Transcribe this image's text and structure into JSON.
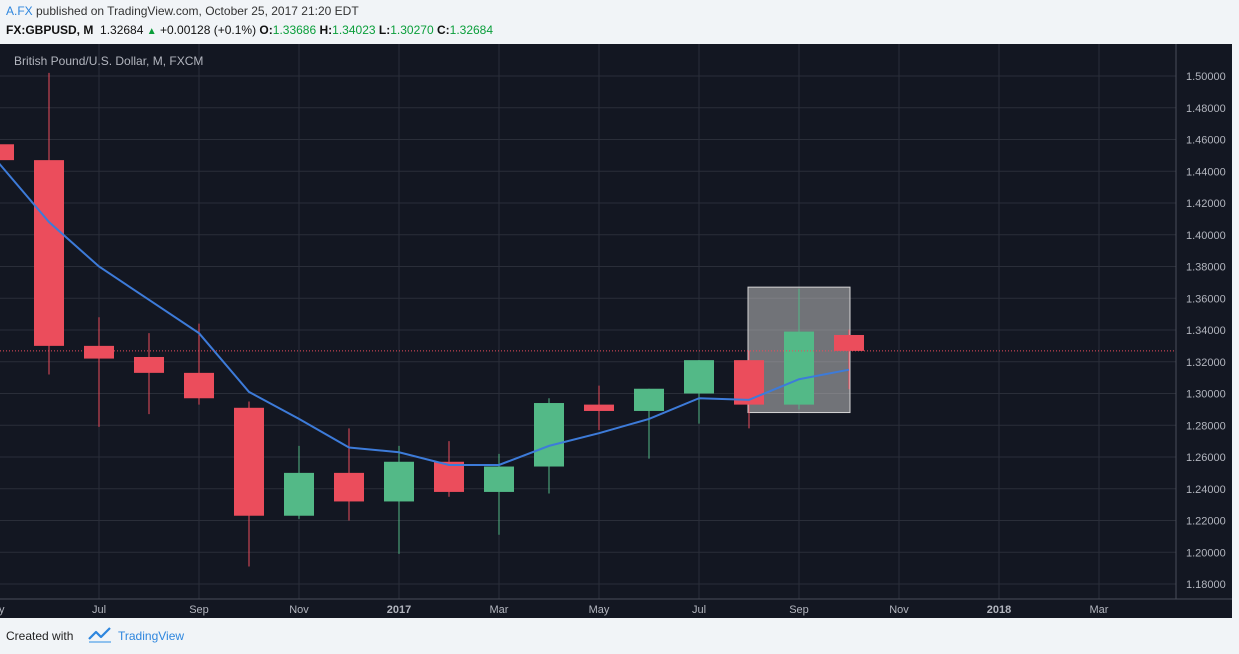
{
  "header": {
    "author": "A.FX",
    "published_text": " published on TradingView.com, October 25, 2017 21:20 EDT",
    "symbol": "FX:GBPUSD, M",
    "last": "1.32684",
    "change": "+0.00128 (+0.1%)",
    "o_label": "O:",
    "o_value": "1.33686",
    "h_label": "H:",
    "h_value": "1.34023",
    "l_label": "L:",
    "l_value": "1.30270",
    "c_label": "C:",
    "c_value": "1.32684"
  },
  "footer": {
    "created_label": "Created with",
    "brand": "TradingView"
  },
  "chart_data": {
    "type": "candlestick",
    "title": "British Pound/U.S. Dollar, M, FXCM",
    "ylim": [
      1.17,
      1.51
    ],
    "y_ticks": [
      "1.18000",
      "1.20000",
      "1.22000",
      "1.24000",
      "1.26000",
      "1.28000",
      "1.30000",
      "1.32000",
      "1.34000",
      "1.36000",
      "1.38000",
      "1.40000",
      "1.42000",
      "1.44000",
      "1.46000",
      "1.48000",
      "1.50000"
    ],
    "x_tick_labels": [
      {
        "index": 0,
        "label": "y"
      },
      {
        "index": 2,
        "label": "Jul"
      },
      {
        "index": 4,
        "label": "Sep"
      },
      {
        "index": 6,
        "label": "Nov"
      },
      {
        "index": 8,
        "label": "2017"
      },
      {
        "index": 10,
        "label": "Mar"
      },
      {
        "index": 12,
        "label": "May"
      },
      {
        "index": 14,
        "label": "Jul"
      },
      {
        "index": 16,
        "label": "Sep"
      },
      {
        "index": 18,
        "label": "Nov"
      },
      {
        "index": 20,
        "label": "2018"
      },
      {
        "index": 22,
        "label": "Mar"
      }
    ],
    "candles": [
      {
        "period": "2016-05",
        "open": 1.457,
        "high": 1.47,
        "low": 1.438,
        "close": 1.447
      },
      {
        "period": "2016-06",
        "open": 1.447,
        "high": 1.502,
        "low": 1.312,
        "close": 1.33
      },
      {
        "period": "2016-07",
        "open": 1.33,
        "high": 1.348,
        "low": 1.279,
        "close": 1.322
      },
      {
        "period": "2016-08",
        "open": 1.323,
        "high": 1.338,
        "low": 1.287,
        "close": 1.313
      },
      {
        "period": "2016-09",
        "open": 1.313,
        "high": 1.344,
        "low": 1.293,
        "close": 1.297
      },
      {
        "period": "2016-10",
        "open": 1.291,
        "high": 1.295,
        "low": 1.191,
        "close": 1.223
      },
      {
        "period": "2016-11",
        "open": 1.223,
        "high": 1.267,
        "low": 1.221,
        "close": 1.25
      },
      {
        "period": "2016-12",
        "open": 1.25,
        "high": 1.278,
        "low": 1.22,
        "close": 1.232
      },
      {
        "period": "2017-01",
        "open": 1.232,
        "high": 1.267,
        "low": 1.199,
        "close": 1.257
      },
      {
        "period": "2017-02",
        "open": 1.257,
        "high": 1.27,
        "low": 1.235,
        "close": 1.238
      },
      {
        "period": "2017-03",
        "open": 1.238,
        "high": 1.262,
        "low": 1.211,
        "close": 1.254
      },
      {
        "period": "2017-04",
        "open": 1.254,
        "high": 1.297,
        "low": 1.237,
        "close": 1.294
      },
      {
        "period": "2017-05",
        "open": 1.293,
        "high": 1.305,
        "low": 1.277,
        "close": 1.289
      },
      {
        "period": "2017-06",
        "open": 1.289,
        "high": 1.303,
        "low": 1.259,
        "close": 1.303
      },
      {
        "period": "2017-07",
        "open": 1.3,
        "high": 1.321,
        "low": 1.281,
        "close": 1.321
      },
      {
        "period": "2017-08",
        "open": 1.321,
        "high": 1.327,
        "low": 1.278,
        "close": 1.293
      },
      {
        "period": "2017-09",
        "open": 1.293,
        "high": 1.366,
        "low": 1.29,
        "close": 1.339
      },
      {
        "period": "2017-10",
        "open": 1.33686,
        "high": 1.34023,
        "low": 1.3027,
        "close": 1.32684
      }
    ],
    "moving_average": [
      1.445,
      1.408,
      1.38,
      1.359,
      1.338,
      1.301,
      1.284,
      1.266,
      1.263,
      1.255,
      1.255,
      1.267,
      1.275,
      1.284,
      1.297,
      1.296,
      1.309,
      1.315
    ],
    "current_price": 1.32684,
    "highlight": {
      "from": "2017-08",
      "to": "2017-10",
      "top": 1.367,
      "bottom": 1.288
    },
    "colors": {
      "background": "#131722",
      "up": "#53b987",
      "down": "#eb4d5c",
      "ma": "#3d7bd9",
      "grid": "#2a2e39",
      "highlight": "#bfbfbf"
    }
  }
}
